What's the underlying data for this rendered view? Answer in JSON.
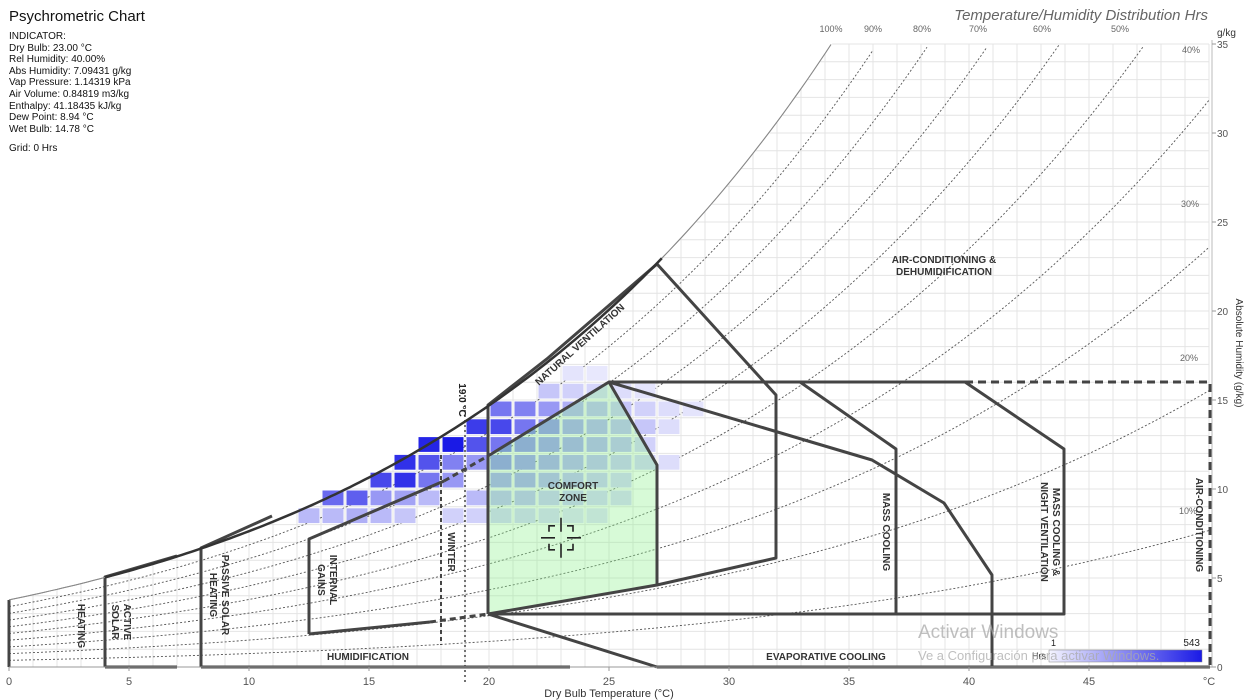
{
  "title": "Psychrometric Chart",
  "subtitle": "Temperature/Humidity Distribution Hrs",
  "indicator": {
    "heading": "INDICATOR:",
    "lines": [
      "Dry Bulb: 23.00 °C",
      "Rel Humidity: 40.00%",
      "Abs Humidity: 7.09431 g/kg",
      "Vap Pressure: 1.14319 kPa",
      "Air Volume: 0.84819 m3/kg",
      "Enthalpy: 41.18435 kJ/kg",
      "Dew Point: 8.94 °C",
      "Wet Bulb: 14.78 °C"
    ],
    "grid": "Grid: 0 Hrs"
  },
  "watermark": {
    "line1": "Activar Windows",
    "line2": "Ve a Configuración para activar Windows."
  },
  "chart_data": {
    "type": "heatmap",
    "xlabel": "Dry Bulb Temperature (°C)",
    "ylabel": "Absolute Humidity (g/kg)",
    "x_unit": "°C",
    "y_unit": "g/kg",
    "xlim": [
      0,
      50
    ],
    "ylim": [
      0,
      35
    ],
    "x_ticks": [
      0,
      5,
      10,
      15,
      20,
      25,
      30,
      35,
      40,
      45
    ],
    "y_ticks": [
      0,
      5,
      10,
      15,
      20,
      25,
      30,
      35
    ],
    "rh_labels": [
      "100%",
      "90%",
      "80%",
      "70%",
      "60%",
      "50%",
      "40%",
      "30%",
      "20%",
      "10%"
    ],
    "rh_curves": [
      10,
      20,
      30,
      40,
      50,
      60,
      70,
      80,
      90,
      100
    ],
    "winter_line": {
      "label": "19.0 °C",
      "temp": 19
    },
    "indicator_point": {
      "temp": 23,
      "abs_humidity": 7.09
    },
    "legend": {
      "label": "Hrs",
      "min": 1,
      "max": 543,
      "color": "#1a1ae6"
    },
    "cells": [
      [
        12.5,
        8.5,
        0.3
      ],
      [
        13.5,
        8.5,
        0.3
      ],
      [
        14.5,
        8.5,
        0.35
      ],
      [
        15.5,
        8.5,
        0.3
      ],
      [
        16.5,
        8.5,
        0.25
      ],
      [
        13.5,
        9.5,
        0.65
      ],
      [
        14.5,
        9.5,
        0.7
      ],
      [
        15.5,
        9.5,
        0.45
      ],
      [
        16.5,
        9.5,
        0.4
      ],
      [
        17.5,
        9.5,
        0.3
      ],
      [
        15.5,
        10.5,
        0.8
      ],
      [
        16.5,
        10.5,
        0.9
      ],
      [
        17.5,
        10.5,
        0.6
      ],
      [
        18.5,
        10.5,
        0.45
      ],
      [
        16.5,
        11.5,
        0.9
      ],
      [
        17.5,
        11.5,
        0.75
      ],
      [
        18.5,
        11.5,
        0.55
      ],
      [
        19.5,
        11.5,
        0.45
      ],
      [
        17.5,
        12.5,
        0.95
      ],
      [
        18.5,
        12.5,
        1.0
      ],
      [
        19.5,
        12.5,
        0.75
      ],
      [
        20.5,
        12.5,
        0.6
      ],
      [
        19.5,
        13.5,
        0.85
      ],
      [
        20.5,
        13.5,
        0.8
      ],
      [
        21.5,
        13.5,
        0.6
      ],
      [
        22.5,
        13.5,
        0.5
      ],
      [
        20.5,
        14.5,
        0.6
      ],
      [
        21.5,
        14.5,
        0.55
      ],
      [
        22.5,
        14.5,
        0.45
      ],
      [
        23.5,
        14.5,
        0.35
      ],
      [
        22.5,
        15.5,
        0.25
      ],
      [
        23.5,
        15.5,
        0.2
      ],
      [
        20.5,
        11.5,
        0.5
      ],
      [
        21.5,
        11.5,
        0.45
      ],
      [
        22.5,
        11.5,
        0.4
      ],
      [
        23.5,
        11.5,
        0.35
      ],
      [
        24.5,
        11.5,
        0.3
      ],
      [
        25.5,
        11.5,
        0.25
      ],
      [
        26.5,
        11.5,
        0.2
      ],
      [
        27.5,
        11.5,
        0.15
      ],
      [
        20.5,
        10.5,
        0.4
      ],
      [
        21.5,
        10.5,
        0.4
      ],
      [
        22.5,
        10.5,
        0.35
      ],
      [
        23.5,
        10.5,
        0.3
      ],
      [
        24.5,
        10.5,
        0.25
      ],
      [
        25.5,
        10.5,
        0.2
      ],
      [
        19.5,
        9.5,
        0.3
      ],
      [
        20.5,
        9.5,
        0.3
      ],
      [
        21.5,
        9.5,
        0.3
      ],
      [
        22.5,
        9.5,
        0.25
      ],
      [
        23.5,
        9.5,
        0.25
      ],
      [
        24.5,
        9.5,
        0.2
      ],
      [
        25.5,
        9.5,
        0.18
      ],
      [
        18.5,
        8.5,
        0.2
      ],
      [
        19.5,
        8.5,
        0.2
      ],
      [
        20.5,
        8.5,
        0.2
      ],
      [
        21.5,
        8.5,
        0.2
      ],
      [
        22.5,
        8.5,
        0.18
      ],
      [
        23.5,
        8.5,
        0.15
      ],
      [
        24.5,
        8.5,
        0.15
      ],
      [
        21.5,
        12.5,
        0.5
      ],
      [
        22.5,
        12.5,
        0.45
      ],
      [
        23.5,
        12.5,
        0.4
      ],
      [
        24.5,
        12.5,
        0.35
      ],
      [
        25.5,
        12.5,
        0.3
      ],
      [
        26.5,
        12.5,
        0.2
      ],
      [
        23.5,
        13.5,
        0.4
      ],
      [
        24.5,
        13.5,
        0.35
      ],
      [
        25.5,
        13.5,
        0.3
      ],
      [
        26.5,
        13.5,
        0.25
      ],
      [
        27.5,
        13.5,
        0.15
      ],
      [
        24.5,
        14.5,
        0.3
      ],
      [
        25.5,
        14.5,
        0.25
      ],
      [
        26.5,
        14.5,
        0.2
      ],
      [
        27.5,
        14.5,
        0.15
      ],
      [
        28.5,
        14.5,
        0.12
      ],
      [
        24.5,
        15.5,
        0.18
      ],
      [
        25.5,
        15.5,
        0.15
      ],
      [
        26.5,
        15.5,
        0.12
      ],
      [
        23.5,
        16.5,
        0.12
      ],
      [
        24.5,
        16.5,
        0.1
      ]
    ],
    "zones": [
      {
        "label": "COMFORT ZONE",
        "lines": [
          "COMFORT",
          "ZONE"
        ]
      },
      {
        "label": "NATURAL VENTILATION"
      },
      {
        "label": "AIR-CONDITIONING & DEHUMIDIFICATION",
        "lines": [
          "AIR-CONDITIONING &",
          "DEHUMIDIFICATION"
        ]
      },
      {
        "label": "MASS COOLING"
      },
      {
        "label": "MASS COOLING & NIGHT VENTILATION",
        "lines": [
          "MASS COOLING &",
          "NIGHT VENTILATION"
        ]
      },
      {
        "label": "AIR-CONDITIONING"
      },
      {
        "label": "EVAPORATIVE COOLING"
      },
      {
        "label": "HUMIDIFICATION"
      },
      {
        "label": "INTERNAL GAINS",
        "lines": [
          "INTERNAL",
          "GAINS"
        ]
      },
      {
        "label": "WINTER"
      },
      {
        "label": "PASSIVE SOLAR HEATING",
        "lines": [
          "PASSIVE SOLAR",
          "HEATING"
        ]
      },
      {
        "label": "ACTIVE SOLAR",
        "lines": [
          "ACTIVE",
          "SOLAR"
        ]
      },
      {
        "label": "HEATING"
      }
    ]
  }
}
